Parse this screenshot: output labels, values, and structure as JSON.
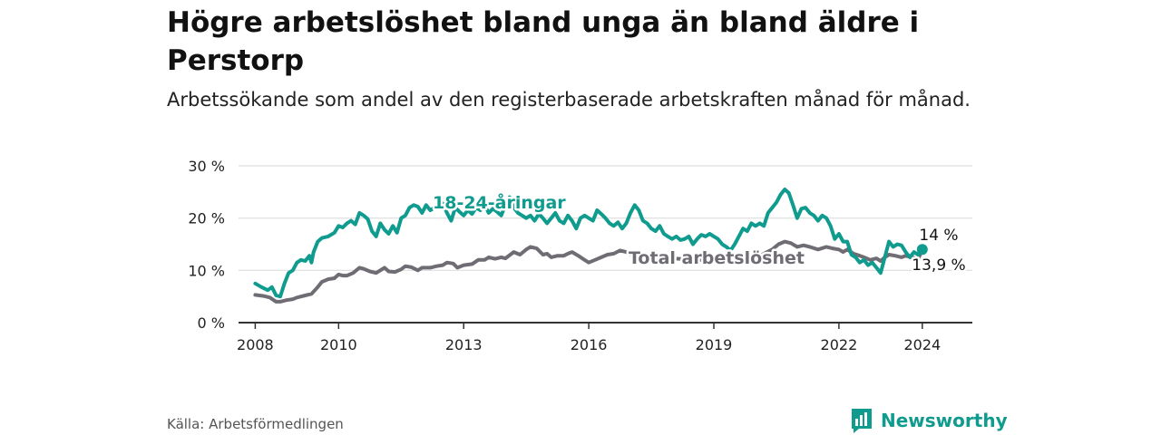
{
  "title": "Högre arbetslöshet bland unga än bland äldre i Perstorp",
  "subtitle": "Arbetssökande som andel av den registerbaserade arbetskraften månad för månad.",
  "source": "Källa: Arbetsförmedlingen",
  "brand": {
    "name": "Newsworthy",
    "icon": "bar-chart-logo-icon"
  },
  "colors": {
    "youth": "#0f9b8e",
    "total": "#6f6c73",
    "grid": "#dddddd",
    "axis": "#333333"
  },
  "chart_data": {
    "type": "line",
    "title": "Högre arbetslöshet bland unga än bland äldre i Perstorp",
    "xlabel": "",
    "ylabel": "",
    "xlim": [
      2007.6,
      2025.2
    ],
    "ylim": [
      0,
      30
    ],
    "y_ticks": [
      {
        "value": 0,
        "label": "0 %"
      },
      {
        "value": 10,
        "label": "10 %"
      },
      {
        "value": 20,
        "label": "20 %"
      },
      {
        "value": 30,
        "label": "30 %"
      }
    ],
    "x_ticks": [
      {
        "value": 2008,
        "label": "2008"
      },
      {
        "value": 2010,
        "label": "2010"
      },
      {
        "value": 2013,
        "label": "2013"
      },
      {
        "value": 2016,
        "label": "2016"
      },
      {
        "value": 2019,
        "label": "2019"
      },
      {
        "value": 2022,
        "label": "2022"
      },
      {
        "value": 2024,
        "label": "2024"
      }
    ],
    "grid": true,
    "series": [
      {
        "name": "18-24-åringar",
        "label": "18-24-åringar",
        "color": "#0f9b8e",
        "last_value_label": "14 %",
        "last_point": {
          "x": 2024.0,
          "y": 14.0
        },
        "points": [
          [
            2008.0,
            7.5
          ],
          [
            2008.15,
            6.8
          ],
          [
            2008.3,
            6.2
          ],
          [
            2008.4,
            6.8
          ],
          [
            2008.5,
            5.2
          ],
          [
            2008.6,
            5.0
          ],
          [
            2008.7,
            7.5
          ],
          [
            2008.8,
            9.5
          ],
          [
            2008.9,
            10.0
          ],
          [
            2009.0,
            11.5
          ],
          [
            2009.1,
            12.0
          ],
          [
            2009.2,
            11.8
          ],
          [
            2009.3,
            12.8
          ],
          [
            2009.35,
            11.5
          ],
          [
            2009.4,
            13.5
          ],
          [
            2009.5,
            15.5
          ],
          [
            2009.6,
            16.2
          ],
          [
            2009.75,
            16.5
          ],
          [
            2009.9,
            17.2
          ],
          [
            2010.0,
            18.5
          ],
          [
            2010.1,
            18.2
          ],
          [
            2010.2,
            19.0
          ],
          [
            2010.3,
            19.5
          ],
          [
            2010.4,
            18.8
          ],
          [
            2010.5,
            21.0
          ],
          [
            2010.6,
            20.5
          ],
          [
            2010.7,
            19.8
          ],
          [
            2010.8,
            17.5
          ],
          [
            2010.9,
            16.5
          ],
          [
            2011.0,
            19.0
          ],
          [
            2011.1,
            17.8
          ],
          [
            2011.2,
            17.0
          ],
          [
            2011.3,
            18.5
          ],
          [
            2011.4,
            17.2
          ],
          [
            2011.5,
            20.0
          ],
          [
            2011.6,
            20.5
          ],
          [
            2011.7,
            22.0
          ],
          [
            2011.8,
            22.5
          ],
          [
            2011.9,
            22.2
          ],
          [
            2012.0,
            21.0
          ],
          [
            2012.1,
            22.5
          ],
          [
            2012.2,
            21.5
          ],
          [
            2012.3,
            22.0
          ],
          [
            2012.4,
            23.0
          ],
          [
            2012.5,
            22.8
          ],
          [
            2012.6,
            21.0
          ],
          [
            2012.7,
            19.5
          ],
          [
            2012.8,
            22.0
          ],
          [
            2012.9,
            21.2
          ],
          [
            2013.0,
            20.5
          ],
          [
            2013.1,
            21.5
          ],
          [
            2013.2,
            20.8
          ],
          [
            2013.3,
            22.0
          ],
          [
            2013.4,
            21.5
          ],
          [
            2013.5,
            22.5
          ],
          [
            2013.6,
            21.0
          ],
          [
            2013.7,
            21.8
          ],
          [
            2013.8,
            21.2
          ],
          [
            2013.9,
            20.5
          ],
          [
            2014.0,
            22.5
          ],
          [
            2014.1,
            24.0
          ],
          [
            2014.2,
            22.0
          ],
          [
            2014.3,
            21.0
          ],
          [
            2014.4,
            20.5
          ],
          [
            2014.5,
            20.0
          ],
          [
            2014.6,
            20.5
          ],
          [
            2014.7,
            19.5
          ],
          [
            2014.8,
            20.8
          ],
          [
            2014.9,
            20.0
          ],
          [
            2015.0,
            19.0
          ],
          [
            2015.1,
            20.0
          ],
          [
            2015.2,
            21.0
          ],
          [
            2015.3,
            19.5
          ],
          [
            2015.4,
            19.0
          ],
          [
            2015.5,
            20.5
          ],
          [
            2015.6,
            19.5
          ],
          [
            2015.7,
            18.0
          ],
          [
            2015.8,
            20.0
          ],
          [
            2015.9,
            20.5
          ],
          [
            2016.0,
            20.0
          ],
          [
            2016.1,
            19.5
          ],
          [
            2016.2,
            21.5
          ],
          [
            2016.3,
            20.8
          ],
          [
            2016.4,
            20.0
          ],
          [
            2016.5,
            19.0
          ],
          [
            2016.6,
            18.5
          ],
          [
            2016.7,
            19.2
          ],
          [
            2016.8,
            18.0
          ],
          [
            2016.9,
            19.0
          ],
          [
            2017.0,
            21.0
          ],
          [
            2017.1,
            22.5
          ],
          [
            2017.2,
            21.5
          ],
          [
            2017.3,
            19.5
          ],
          [
            2017.4,
            19.0
          ],
          [
            2017.5,
            18.0
          ],
          [
            2017.6,
            17.5
          ],
          [
            2017.7,
            18.5
          ],
          [
            2017.8,
            17.0
          ],
          [
            2017.9,
            16.5
          ],
          [
            2018.0,
            16.0
          ],
          [
            2018.1,
            16.5
          ],
          [
            2018.2,
            15.8
          ],
          [
            2018.3,
            16.0
          ],
          [
            2018.4,
            16.5
          ],
          [
            2018.5,
            15.0
          ],
          [
            2018.6,
            16.0
          ],
          [
            2018.7,
            16.8
          ],
          [
            2018.8,
            16.5
          ],
          [
            2018.9,
            17.0
          ],
          [
            2019.0,
            16.5
          ],
          [
            2019.1,
            16.0
          ],
          [
            2019.2,
            15.0
          ],
          [
            2019.3,
            14.5
          ],
          [
            2019.4,
            13.8
          ],
          [
            2019.5,
            15.0
          ],
          [
            2019.6,
            16.5
          ],
          [
            2019.7,
            18.0
          ],
          [
            2019.8,
            17.5
          ],
          [
            2019.9,
            19.0
          ],
          [
            2020.0,
            18.5
          ],
          [
            2020.1,
            19.0
          ],
          [
            2020.2,
            18.5
          ],
          [
            2020.3,
            21.0
          ],
          [
            2020.4,
            22.0
          ],
          [
            2020.5,
            23.0
          ],
          [
            2020.6,
            24.5
          ],
          [
            2020.7,
            25.5
          ],
          [
            2020.8,
            24.8
          ],
          [
            2020.9,
            22.5
          ],
          [
            2021.0,
            20.0
          ],
          [
            2021.1,
            21.8
          ],
          [
            2021.2,
            22.0
          ],
          [
            2021.3,
            21.0
          ],
          [
            2021.4,
            20.5
          ],
          [
            2021.5,
            19.5
          ],
          [
            2021.6,
            20.5
          ],
          [
            2021.7,
            20.0
          ],
          [
            2021.8,
            18.5
          ],
          [
            2021.9,
            16.0
          ],
          [
            2022.0,
            17.0
          ],
          [
            2022.1,
            15.5
          ],
          [
            2022.2,
            15.5
          ],
          [
            2022.3,
            13.0
          ],
          [
            2022.4,
            12.5
          ],
          [
            2022.5,
            11.5
          ],
          [
            2022.6,
            12.0
          ],
          [
            2022.7,
            11.0
          ],
          [
            2022.8,
            11.5
          ],
          [
            2022.9,
            10.5
          ],
          [
            2023.0,
            9.5
          ],
          [
            2023.1,
            12.5
          ],
          [
            2023.2,
            15.5
          ],
          [
            2023.3,
            14.5
          ],
          [
            2023.4,
            15.0
          ],
          [
            2023.5,
            14.8
          ],
          [
            2023.6,
            13.5
          ],
          [
            2023.7,
            12.5
          ],
          [
            2023.8,
            13.5
          ],
          [
            2023.9,
            13.0
          ],
          [
            2024.0,
            14.0
          ]
        ]
      },
      {
        "name": "Total arbetslöshet",
        "label": "Total arbetslöshet",
        "color": "#6f6c73",
        "last_value_label": "13,9 %",
        "last_point": {
          "x": 2024.0,
          "y": 13.9
        },
        "points": [
          [
            2008.0,
            5.3
          ],
          [
            2008.2,
            5.1
          ],
          [
            2008.35,
            4.8
          ],
          [
            2008.5,
            4.0
          ],
          [
            2008.6,
            4.0
          ],
          [
            2008.75,
            4.3
          ],
          [
            2008.9,
            4.5
          ],
          [
            2009.0,
            4.8
          ],
          [
            2009.2,
            5.2
          ],
          [
            2009.35,
            5.5
          ],
          [
            2009.5,
            6.8
          ],
          [
            2009.6,
            7.8
          ],
          [
            2009.75,
            8.3
          ],
          [
            2009.9,
            8.5
          ],
          [
            2010.0,
            9.2
          ],
          [
            2010.1,
            9.0
          ],
          [
            2010.2,
            9.0
          ],
          [
            2010.35,
            9.5
          ],
          [
            2010.5,
            10.5
          ],
          [
            2010.6,
            10.3
          ],
          [
            2010.75,
            9.8
          ],
          [
            2010.9,
            9.5
          ],
          [
            2011.0,
            10.0
          ],
          [
            2011.1,
            10.5
          ],
          [
            2011.2,
            9.8
          ],
          [
            2011.35,
            9.7
          ],
          [
            2011.5,
            10.2
          ],
          [
            2011.6,
            10.8
          ],
          [
            2011.75,
            10.6
          ],
          [
            2011.9,
            10.0
          ],
          [
            2012.0,
            10.5
          ],
          [
            2012.2,
            10.5
          ],
          [
            2012.35,
            10.8
          ],
          [
            2012.5,
            11.0
          ],
          [
            2012.6,
            11.5
          ],
          [
            2012.75,
            11.3
          ],
          [
            2012.85,
            10.5
          ],
          [
            2013.0,
            11.0
          ],
          [
            2013.2,
            11.2
          ],
          [
            2013.35,
            12.0
          ],
          [
            2013.5,
            12.0
          ],
          [
            2013.6,
            12.5
          ],
          [
            2013.75,
            12.2
          ],
          [
            2013.9,
            12.5
          ],
          [
            2014.0,
            12.3
          ],
          [
            2014.2,
            13.5
          ],
          [
            2014.35,
            13.0
          ],
          [
            2014.5,
            14.0
          ],
          [
            2014.6,
            14.5
          ],
          [
            2014.75,
            14.2
          ],
          [
            2014.9,
            13.0
          ],
          [
            2015.0,
            13.2
          ],
          [
            2015.1,
            12.5
          ],
          [
            2015.25,
            12.8
          ],
          [
            2015.4,
            12.8
          ],
          [
            2015.5,
            13.2
          ],
          [
            2015.6,
            13.5
          ],
          [
            2015.75,
            12.8
          ],
          [
            2015.9,
            12.0
          ],
          [
            2016.0,
            11.5
          ],
          [
            2016.15,
            12.0
          ],
          [
            2016.3,
            12.5
          ],
          [
            2016.45,
            13.0
          ],
          [
            2016.6,
            13.2
          ],
          [
            2016.75,
            13.8
          ],
          [
            2016.9,
            13.5
          ],
          [
            2017.0,
            13.0
          ],
          [
            2017.15,
            13.2
          ],
          [
            2017.3,
            13.0
          ],
          [
            2017.5,
            12.5
          ],
          [
            2019.8,
            11.5
          ],
          [
            2020.0,
            12.2
          ],
          [
            2020.2,
            13.2
          ],
          [
            2020.4,
            14.0
          ],
          [
            2020.55,
            15.0
          ],
          [
            2020.7,
            15.5
          ],
          [
            2020.85,
            15.2
          ],
          [
            2021.0,
            14.5
          ],
          [
            2021.15,
            14.8
          ],
          [
            2021.3,
            14.5
          ],
          [
            2021.5,
            14.0
          ],
          [
            2021.7,
            14.5
          ],
          [
            2021.85,
            14.2
          ],
          [
            2022.0,
            14.0
          ],
          [
            2022.1,
            13.5
          ],
          [
            2022.2,
            14.0
          ],
          [
            2022.35,
            13.2
          ],
          [
            2022.5,
            12.8
          ],
          [
            2022.6,
            12.5
          ],
          [
            2022.75,
            12.0
          ],
          [
            2022.9,
            12.3
          ],
          [
            2023.0,
            11.8
          ],
          [
            2023.1,
            12.5
          ],
          [
            2023.2,
            13.0
          ],
          [
            2023.35,
            12.8
          ],
          [
            2023.5,
            12.5
          ],
          [
            2023.6,
            12.8
          ],
          [
            2023.75,
            12.5
          ],
          [
            2023.9,
            12.2
          ],
          [
            2024.0,
            13.9
          ]
        ]
      }
    ]
  }
}
